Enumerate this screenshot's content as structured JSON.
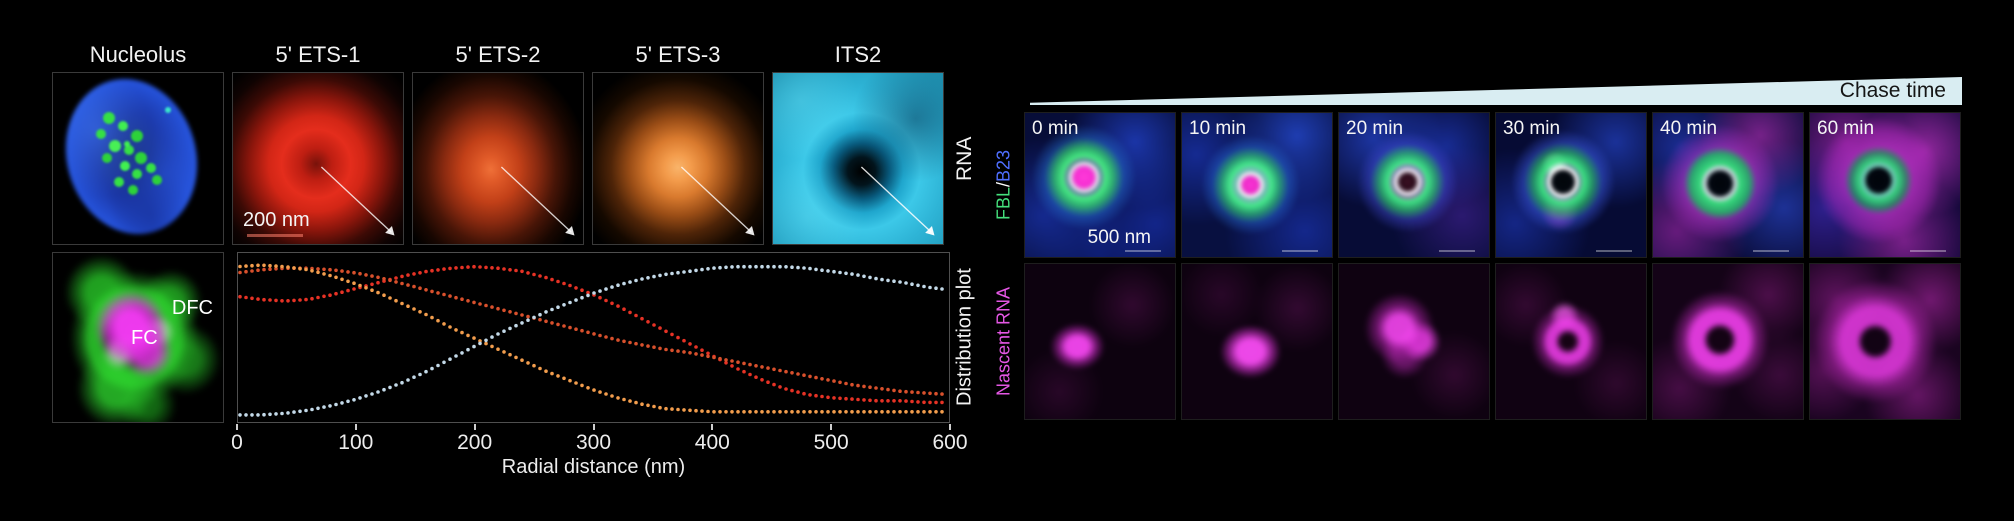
{
  "left_panel": {
    "titles": [
      "Nucleolus",
      "5' ETS-1",
      "5' ETS-2",
      "5' ETS-3",
      "ITS2"
    ],
    "rna_side_label": "RNA",
    "plot_side_label": "Distribution plot",
    "scale_bar_label": "200 nm",
    "dfc_label": "DFC",
    "fc_label": "FC"
  },
  "right_panel": {
    "chase_time_label": "Chase time",
    "time_points": [
      "0 min",
      "10 min",
      "20 min",
      "30 min",
      "40 min",
      "60 min"
    ],
    "scale_bar_label": "500 nm",
    "fbl_label": "FBL",
    "separator": " / ",
    "b23_label": "B23",
    "nascent_rna_label": "Nascent RNA",
    "colors": {
      "fbl": "#45e07c",
      "b23": "#4f6fff",
      "nascent_rna": "#e557e5",
      "wedge": "#d9edf2"
    }
  },
  "chart_data": {
    "type": "line",
    "style": "dotted",
    "title": "",
    "xlabel": "Radial distance (nm)",
    "ylabel": "",
    "xlim": [
      0,
      600
    ],
    "ylim": [
      0,
      1
    ],
    "x_ticks": [
      0,
      100,
      200,
      300,
      400,
      500,
      600
    ],
    "grid": false,
    "legend": "none",
    "x": [
      0,
      20,
      40,
      60,
      80,
      100,
      120,
      140,
      160,
      180,
      200,
      220,
      240,
      260,
      280,
      300,
      320,
      340,
      360,
      380,
      400,
      420,
      440,
      460,
      480,
      500,
      520,
      540,
      560,
      580,
      600
    ],
    "series": [
      {
        "name": "5' ETS-1",
        "color": "#e63225",
        "values": [
          0.78,
          0.76,
          0.75,
          0.76,
          0.79,
          0.83,
          0.87,
          0.91,
          0.94,
          0.96,
          0.97,
          0.96,
          0.94,
          0.9,
          0.85,
          0.79,
          0.72,
          0.64,
          0.56,
          0.48,
          0.4,
          0.32,
          0.25,
          0.19,
          0.15,
          0.13,
          0.12,
          0.11,
          0.11,
          0.1,
          0.1
        ]
      },
      {
        "name": "5' ETS-2",
        "color": "#d8502c",
        "values": [
          0.93,
          0.95,
          0.96,
          0.96,
          0.95,
          0.93,
          0.9,
          0.86,
          0.82,
          0.78,
          0.74,
          0.7,
          0.66,
          0.62,
          0.58,
          0.54,
          0.5,
          0.47,
          0.44,
          0.42,
          0.39,
          0.36,
          0.33,
          0.3,
          0.27,
          0.24,
          0.21,
          0.19,
          0.17,
          0.16,
          0.15
        ]
      },
      {
        "name": "5' ETS-3",
        "color": "#f29d4d",
        "values": [
          0.97,
          0.98,
          0.97,
          0.95,
          0.91,
          0.86,
          0.8,
          0.73,
          0.66,
          0.58,
          0.51,
          0.44,
          0.37,
          0.3,
          0.24,
          0.18,
          0.13,
          0.09,
          0.06,
          0.05,
          0.04,
          0.04,
          0.04,
          0.04,
          0.04,
          0.04,
          0.04,
          0.04,
          0.04,
          0.04,
          0.04
        ]
      },
      {
        "name": "ITS2",
        "color": "#c3d9e8",
        "values": [
          0.02,
          0.02,
          0.03,
          0.05,
          0.08,
          0.12,
          0.17,
          0.23,
          0.3,
          0.38,
          0.46,
          0.54,
          0.61,
          0.68,
          0.74,
          0.8,
          0.85,
          0.89,
          0.92,
          0.94,
          0.96,
          0.97,
          0.97,
          0.97,
          0.96,
          0.94,
          0.92,
          0.89,
          0.87,
          0.84,
          0.82
        ]
      }
    ]
  }
}
